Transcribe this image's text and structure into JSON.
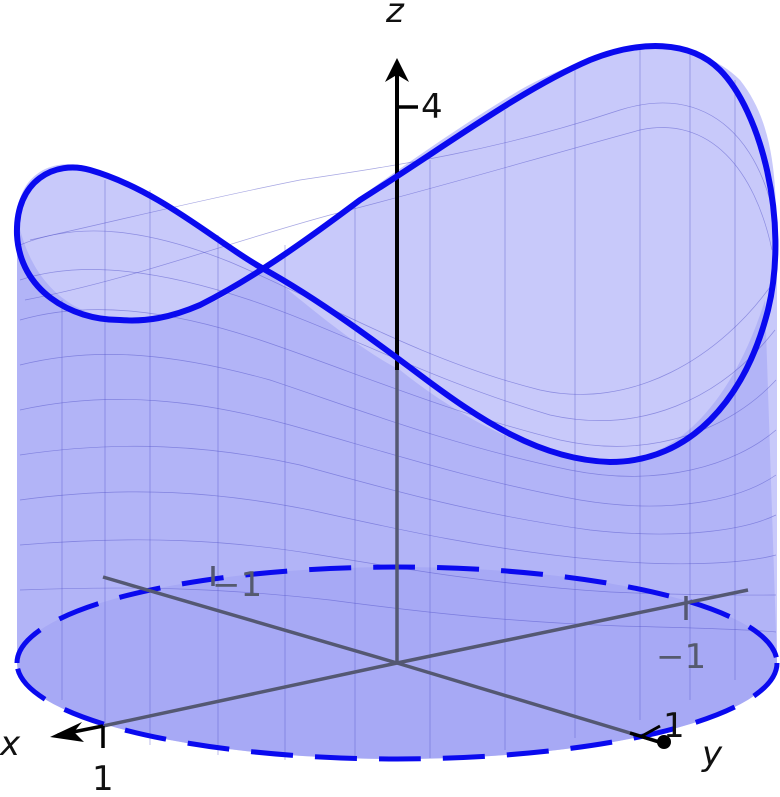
{
  "figure": {
    "axes": {
      "z_label": "z",
      "x_label": "x",
      "y_label": "y",
      "z_tick": "4",
      "x_tick": "1",
      "x_neg_tick": "−1",
      "y_tick": "1",
      "y_neg_tick": "−1"
    },
    "colors": {
      "curve": "#0a0aef",
      "surface_fill": "#9b9cf5",
      "mesh": "#5050c8",
      "axis": "#000000",
      "hidden_axis": "#545872"
    }
  }
}
